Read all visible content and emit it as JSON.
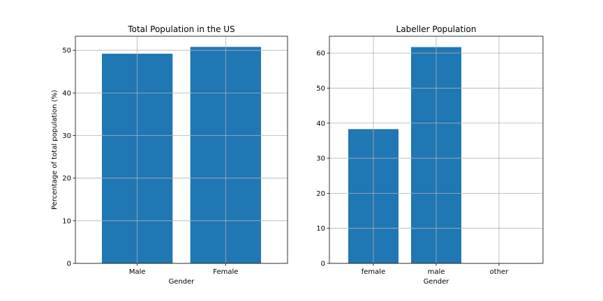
{
  "chart_data": [
    {
      "type": "bar",
      "title": "Total Population in the US",
      "xlabel": "Gender",
      "ylabel": "Percentage of total population (%)",
      "categories": [
        "Male",
        "Female"
      ],
      "values": [
        49.2,
        50.8
      ],
      "ylim": [
        0,
        53.3
      ],
      "yticks": [
        0,
        10,
        20,
        30,
        40,
        50
      ],
      "grid": true,
      "color": "#1f77b4"
    },
    {
      "type": "bar",
      "title": "Labeller Population",
      "xlabel": "Gender",
      "ylabel": "",
      "categories": [
        "female",
        "male",
        "other"
      ],
      "values": [
        38.3,
        61.7,
        0
      ],
      "ylim": [
        0,
        64.8
      ],
      "yticks": [
        0,
        10,
        20,
        30,
        40,
        50,
        60
      ],
      "grid": true,
      "color": "#1f77b4"
    }
  ]
}
